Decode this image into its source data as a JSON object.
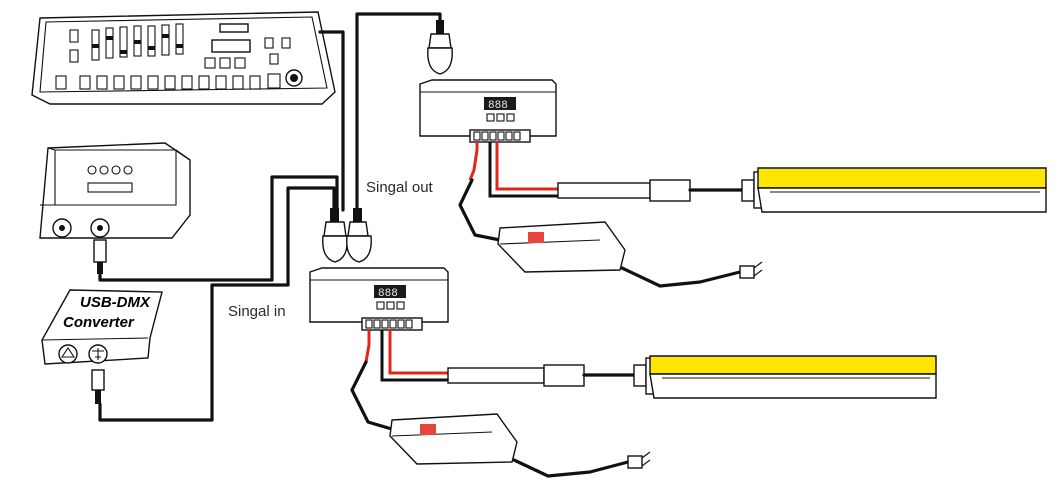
{
  "labels": {
    "signal_out": "Singal out",
    "signal_in": "Singal in",
    "converter_line1": "USB-DMX",
    "converter_line2": "Converter"
  },
  "colors": {
    "strip_light": "#ffe600",
    "positive_wire": "#e0261b",
    "driver_label": "#e8453c",
    "display": "#1a1a1a"
  },
  "display_digits": {
    "top_decoder": "888",
    "bottom_decoder": "888"
  }
}
